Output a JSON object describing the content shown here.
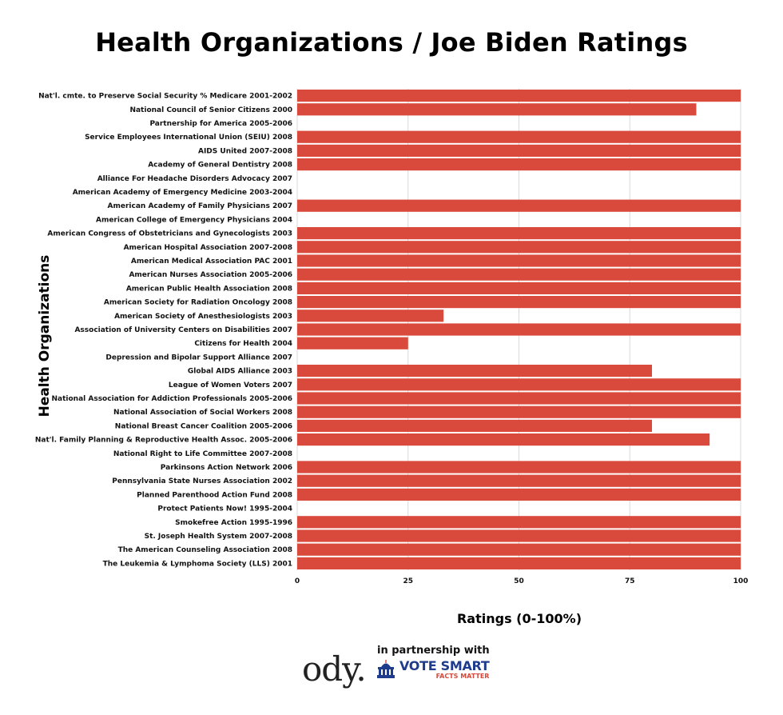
{
  "chart_data": {
    "type": "bar",
    "orientation": "horizontal",
    "title": "Health Organizations / Joe Biden Ratings",
    "xlabel": "Ratings (0-100%)",
    "ylabel": "Health Organizations",
    "xlim": [
      0,
      100
    ],
    "xticks": [
      0,
      25,
      50,
      75,
      100
    ],
    "grid": true,
    "bar_color": "#d94a3c",
    "categories": [
      "Nat'l. cmte. to Preserve Social Security % Medicare 2001-2002",
      "National Council of Senior Citizens 2000",
      "Partnership for America 2005-2006",
      "Service Employees International Union (SEIU) 2008",
      "AIDS United 2007-2008",
      "Academy of General Dentistry 2008",
      "Alliance For Headache Disorders Advocacy 2007",
      "American Academy of Emergency Medicine 2003-2004",
      "American Academy of Family Physicians 2007",
      "American College of Emergency Physicians 2004",
      "American Congress of Obstetricians and Gynecologists 2003",
      "American Hospital Association 2007-2008",
      "American Medical Association PAC 2001",
      "American Nurses Association 2005-2006",
      "American Public Health Association 2008",
      "American Society for Radiation Oncology 2008",
      "American Society of Anesthesiologists 2003",
      "Association of University Centers on Disabilities 2007",
      "Citizens for Health 2004",
      "Depression and Bipolar Support Alliance 2007",
      "Global AIDS Alliance 2003",
      "League of Women Voters 2007",
      "National Association for Addiction Professionals 2005-2006",
      "National Association of Social Workers 2008",
      "National Breast Cancer Coalition 2005-2006",
      "Nat'l. Family Planning & Reproductive Health Assoc. 2005-2006",
      "National Right to Life Committee 2007-2008",
      "Parkinsons Action Network 2006",
      "Pennsylvania State Nurses Association 2002",
      "Planned Parenthood Action Fund 2008",
      "Protect Patients Now! 1995-2004",
      "Smokefree Action 1995-1996",
      "St. Joseph Health System 2007-2008",
      "The American Counseling Association 2008",
      "The Leukemia & Lymphoma Society (LLS) 2001"
    ],
    "values": [
      100,
      90,
      0,
      100,
      100,
      100,
      0,
      0,
      100,
      0,
      100,
      100,
      100,
      100,
      100,
      100,
      33,
      100,
      25,
      0,
      80,
      100,
      100,
      100,
      80,
      93,
      0,
      100,
      100,
      100,
      0,
      100,
      100,
      100,
      100
    ]
  },
  "footer": {
    "logo": "ody.",
    "partner_text": "in partnership with",
    "brand": "VOTE SMART",
    "tagline": "FACTS MATTER"
  },
  "colors": {
    "bar": "#d94a3c",
    "grid": "#d9d9d9",
    "brand_blue": "#1f3b8c",
    "brand_red": "#d64a3c"
  }
}
